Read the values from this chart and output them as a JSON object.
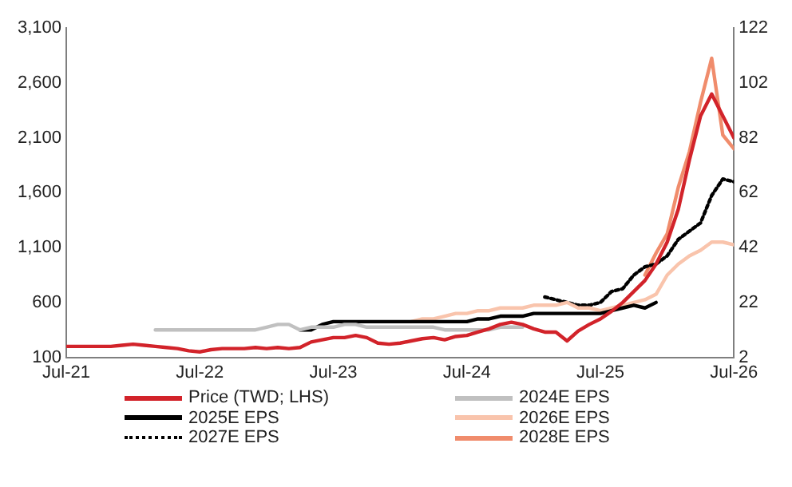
{
  "chart_data": {
    "type": "line",
    "marker": "none",
    "grid": false,
    "legend": "bottom",
    "x": [
      "2021-07",
      "2021-08",
      "2021-09",
      "2021-10",
      "2021-11",
      "2021-12",
      "2022-01",
      "2022-02",
      "2022-03",
      "2022-04",
      "2022-05",
      "2022-06",
      "2022-07",
      "2022-08",
      "2022-09",
      "2022-10",
      "2022-11",
      "2022-12",
      "2023-01",
      "2023-02",
      "2023-03",
      "2023-04",
      "2023-05",
      "2023-06",
      "2023-07",
      "2023-08",
      "2023-09",
      "2023-10",
      "2023-11",
      "2023-12",
      "2024-01",
      "2024-02",
      "2024-03",
      "2024-04",
      "2024-05",
      "2024-06",
      "2024-07",
      "2024-08",
      "2024-09",
      "2024-10",
      "2024-11",
      "2024-12",
      "2025-01",
      "2025-02",
      "2025-03",
      "2025-04",
      "2025-05",
      "2025-06",
      "2025-07",
      "2025-08",
      "2025-09",
      "2025-10",
      "2025-11",
      "2025-12",
      "2026-01",
      "2026-02",
      "2026-03",
      "2026-04",
      "2026-05",
      "2026-06",
      "2026-07"
    ],
    "xlim": [
      "2021-07",
      "2026-07"
    ],
    "xticks": [
      {
        "value": "2021-07",
        "label": "Jul-21"
      },
      {
        "value": "2022-07",
        "label": "Jul-22"
      },
      {
        "value": "2023-07",
        "label": "Jul-23"
      },
      {
        "value": "2024-07",
        "label": "Jul-24"
      },
      {
        "value": "2025-07",
        "label": "Jul-25"
      },
      {
        "value": "2026-07",
        "label": "Jul-26"
      }
    ],
    "ylim": [
      100,
      3100
    ],
    "yticks": [
      100,
      600,
      {
        "value": 1100,
        "label": "1,100"
      },
      {
        "value": 1600,
        "label": "1,600"
      },
      {
        "value": 2100,
        "label": "2,100"
      },
      {
        "value": 2600,
        "label": "2,600"
      },
      {
        "value": 3100,
        "label": "3,100"
      }
    ],
    "y2lim": [
      2,
      122
    ],
    "y2ticks": [
      2,
      22,
      42,
      62,
      82,
      102,
      122
    ],
    "series": [
      {
        "name": "Price (TWD; LHS)",
        "color": "#d2232a",
        "line_style": "solid",
        "values": [
          200,
          200,
          200,
          200,
          200,
          210,
          220,
          210,
          200,
          190,
          180,
          160,
          150,
          170,
          180,
          180,
          180,
          190,
          180,
          190,
          180,
          190,
          240,
          260,
          280,
          280,
          300,
          280,
          230,
          220,
          230,
          250,
          270,
          280,
          260,
          290,
          300,
          330,
          360,
          400,
          420,
          400,
          360,
          330,
          330,
          250,
          340,
          400,
          450,
          520,
          600,
          700,
          800,
          950,
          1150,
          1450,
          1900,
          2300,
          2500,
          2300,
          2100
        ]
      },
      {
        "name": "2024E EPS",
        "color": "#c0c0c0",
        "line_style": "solid",
        "axis": "y2",
        "values": [
          null,
          null,
          null,
          null,
          null,
          null,
          null,
          null,
          12,
          12,
          12,
          12,
          12,
          12,
          12,
          12,
          12,
          12,
          13,
          14,
          14,
          12,
          13,
          13,
          13,
          14,
          14,
          13,
          13,
          13,
          13,
          13,
          13,
          13,
          12,
          12,
          12,
          12,
          12,
          13,
          13,
          13,
          null,
          null,
          null,
          null,
          null,
          null,
          null,
          null,
          null,
          null,
          null,
          null,
          null,
          null,
          null,
          null,
          null,
          null,
          null
        ]
      },
      {
        "name": "2025E EPS",
        "color": "#000000",
        "line_style": "solid",
        "axis": "y2",
        "values": [
          null,
          null,
          null,
          null,
          null,
          null,
          null,
          null,
          null,
          null,
          null,
          null,
          null,
          null,
          null,
          null,
          null,
          null,
          null,
          null,
          null,
          12,
          12,
          14,
          15,
          15,
          15,
          15,
          15,
          15,
          15,
          15,
          15,
          15,
          15,
          15,
          15,
          16,
          16,
          17,
          17,
          17,
          18,
          18,
          18,
          18,
          18,
          18,
          18,
          19,
          20,
          21,
          20,
          22,
          null,
          null,
          null,
          null,
          null,
          null,
          null
        ]
      },
      {
        "name": "2026E EPS",
        "color": "#f9c4ac",
        "line_style": "solid",
        "axis": "y2",
        "values": [
          null,
          null,
          null,
          null,
          null,
          null,
          null,
          null,
          null,
          null,
          null,
          null,
          null,
          null,
          null,
          null,
          null,
          null,
          null,
          null,
          null,
          null,
          null,
          null,
          null,
          null,
          null,
          null,
          null,
          null,
          null,
          15,
          16,
          16,
          17,
          18,
          18,
          19,
          19,
          20,
          20,
          20,
          21,
          21,
          21,
          22,
          20,
          20,
          19,
          20,
          21,
          22,
          23,
          25,
          32,
          36,
          39,
          41,
          44,
          44,
          43
        ]
      },
      {
        "name": "2027E EPS",
        "color": "#000000",
        "line_style": "dotted",
        "axis": "y2",
        "values": [
          null,
          null,
          null,
          null,
          null,
          null,
          null,
          null,
          null,
          null,
          null,
          null,
          null,
          null,
          null,
          null,
          null,
          null,
          null,
          null,
          null,
          null,
          null,
          null,
          null,
          null,
          null,
          null,
          null,
          null,
          null,
          null,
          null,
          null,
          null,
          null,
          null,
          null,
          null,
          null,
          null,
          null,
          null,
          24,
          23,
          22,
          21,
          21,
          22,
          26,
          27,
          32,
          35,
          36,
          39,
          45,
          48,
          51,
          61,
          67,
          66
        ]
      },
      {
        "name": "2028E EPS",
        "color": "#f08c6c",
        "line_style": "solid",
        "axis": "y2",
        "values": [
          null,
          null,
          null,
          null,
          null,
          null,
          null,
          null,
          null,
          null,
          null,
          null,
          null,
          null,
          null,
          null,
          null,
          null,
          null,
          null,
          null,
          null,
          null,
          null,
          null,
          null,
          null,
          null,
          null,
          null,
          null,
          null,
          null,
          null,
          null,
          null,
          null,
          null,
          null,
          null,
          null,
          null,
          null,
          null,
          null,
          null,
          null,
          null,
          null,
          null,
          null,
          null,
          32,
          40,
          47,
          64,
          77,
          95,
          111,
          83,
          78
        ]
      }
    ]
  }
}
